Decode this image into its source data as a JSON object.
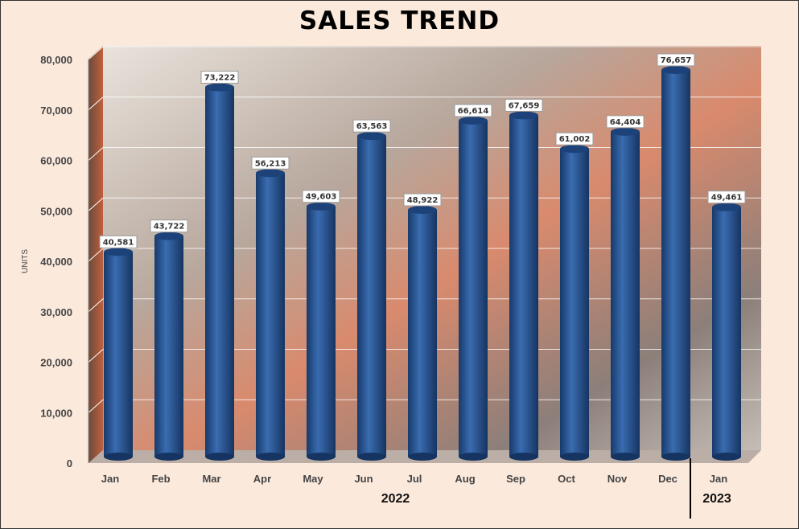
{
  "chart_data": {
    "type": "bar",
    "title": "SALES TREND",
    "ylabel": "UNITS",
    "xlabel": "",
    "ylim": [
      0,
      80000
    ],
    "yticks": [
      "0",
      "10,000",
      "20,000",
      "30,000",
      "40,000",
      "50,000",
      "60,000",
      "70,000",
      "80,000"
    ],
    "categories": [
      "Jan",
      "Feb",
      "Mar",
      "Apr",
      "May",
      "Jun",
      "Jul",
      "Aug",
      "Sep",
      "Oct",
      "Nov",
      "Dec",
      "Jan"
    ],
    "values": [
      40581,
      43722,
      73222,
      56213,
      49603,
      63563,
      48922,
      66614,
      67659,
      61002,
      64404,
      76657,
      49461
    ],
    "value_labels": [
      "40,581",
      "43,722",
      "73,222",
      "56,213",
      "49,603",
      "63,563",
      "48,922",
      "66,614",
      "67,659",
      "61,002",
      "64,404",
      "76,657",
      "49,461"
    ],
    "groups": [
      {
        "label": "2022",
        "count": 12
      },
      {
        "label": "2023",
        "count": 1
      }
    ],
    "grid": true,
    "bar_color": "#2d5a9a"
  }
}
